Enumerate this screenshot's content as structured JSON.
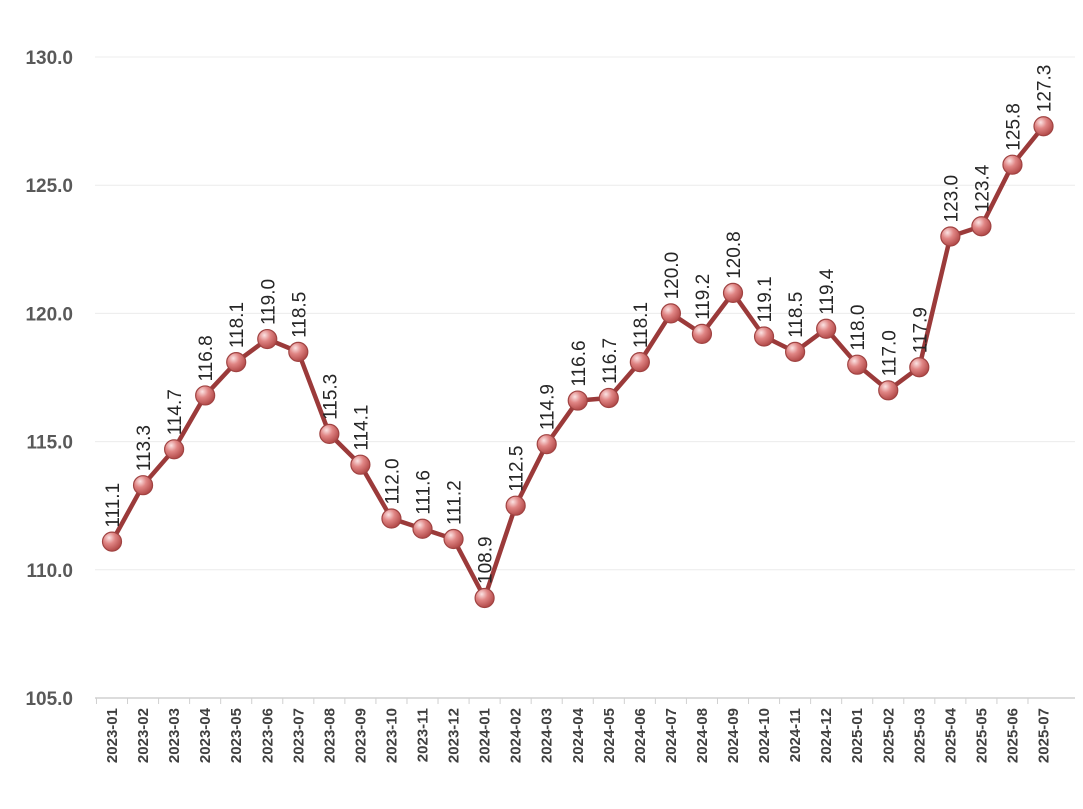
{
  "chart_data": {
    "type": "line",
    "title": "",
    "xlabel": "",
    "ylabel": "",
    "ylim": [
      105,
      130
    ],
    "yticks": [
      "105.0",
      "110.0",
      "115.0",
      "120.0",
      "125.0",
      "130.0"
    ],
    "grid": true,
    "legend": "none",
    "categories": [
      "2023-01",
      "2023-02",
      "2023-03",
      "2023-04",
      "2023-05",
      "2023-06",
      "2023-07",
      "2023-08",
      "2023-09",
      "2023-10",
      "2023-11",
      "2023-12",
      "2024-01",
      "2024-02",
      "2024-03",
      "2024-04",
      "2024-05",
      "2024-06",
      "2024-07",
      "2024-08",
      "2024-09",
      "2024-10",
      "2024-11",
      "2024-12",
      "2025-01",
      "2025-02",
      "2025-03",
      "2025-04",
      "2025-05",
      "2025-06",
      "2025-07"
    ],
    "series": [
      {
        "values": [
          111.1,
          113.3,
          114.7,
          116.8,
          118.1,
          119.0,
          118.5,
          115.3,
          114.1,
          112.0,
          111.6,
          111.2,
          108.9,
          112.5,
          114.9,
          116.6,
          116.7,
          118.1,
          120.0,
          119.2,
          120.8,
          119.1,
          118.5,
          119.4,
          118.0,
          117.0,
          117.9,
          123.0,
          123.4,
          125.8,
          127.3
        ],
        "labels": [
          "111.1",
          "113.3",
          "114.7",
          "116.8",
          "118.1",
          "119.0",
          "118.5",
          "115.3",
          "114.1",
          "112.0",
          "111.6",
          "111.2",
          "108.9",
          "112.5",
          "114.9",
          "116.6",
          "116.7",
          "118.1",
          "120.0",
          "119.2",
          "120.8",
          "119.1",
          "118.5",
          "119.4",
          "118.0",
          "117.0",
          "117.9",
          "123.0",
          "123.4",
          "125.8",
          "127.3"
        ]
      }
    ],
    "colors": {
      "line": "#9b3a3a",
      "marker": "#d9706f",
      "marker_highlight": "#f8dcdc",
      "grid": "#ececec",
      "axis": "#d0d0d0"
    }
  }
}
